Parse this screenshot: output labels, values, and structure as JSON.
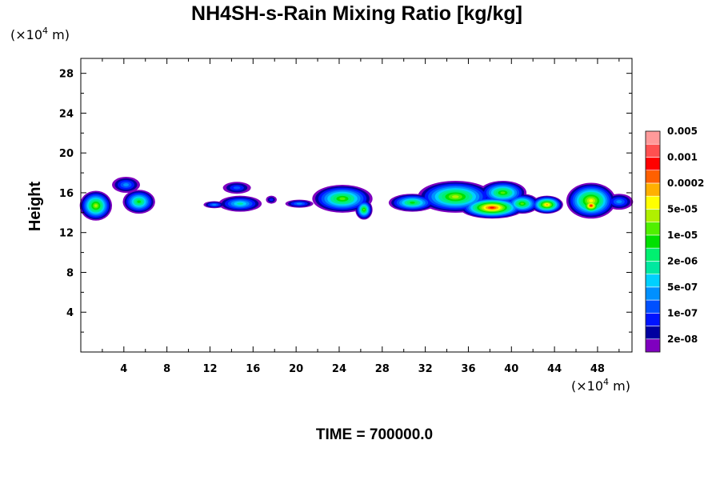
{
  "chart_data": {
    "type": "heatmap",
    "title": "NH4SH-s-Rain Mixing Ratio [kg/kg]",
    "ylabel": "Height",
    "xlabel": "",
    "x_unit": {
      "prefix": "(×10",
      "exp": "4",
      "suffix": " m)"
    },
    "y_unit": {
      "prefix": "(×10",
      "exp": "4",
      "suffix": " m)"
    },
    "xlim": [
      0,
      51.2
    ],
    "ylim": [
      0,
      29.5
    ],
    "x_ticks": [
      4,
      8,
      12,
      16,
      20,
      24,
      28,
      32,
      36,
      40,
      44,
      48
    ],
    "y_ticks": [
      4,
      8,
      12,
      16,
      20,
      24,
      28
    ],
    "time_label": "TIME = 700000.0",
    "colorbar": {
      "colors": [
        "#7f00bf",
        "#0000a0",
        "#0014ff",
        "#0050ff",
        "#0090ff",
        "#00d0ff",
        "#00e8a0",
        "#00f070",
        "#00e000",
        "#50f000",
        "#b0f000",
        "#ffff00",
        "#ffb000",
        "#ff6000",
        "#ff0000",
        "#ff5050",
        "#ff9a9a"
      ],
      "labels": [
        "2e-08",
        "1e-07",
        "5e-07",
        "2e-06",
        "1e-05",
        "5e-05",
        "0.0002",
        "0.001",
        "0.005"
      ]
    },
    "field_blobs": [
      {
        "x": 1.4,
        "y": 14.7,
        "rx": 1.5,
        "ry": 1.5,
        "peak": 10
      },
      {
        "x": 4.2,
        "y": 16.8,
        "rx": 1.3,
        "ry": 0.8,
        "peak": 4
      },
      {
        "x": 5.4,
        "y": 15.1,
        "rx": 1.5,
        "ry": 1.2,
        "peak": 8
      },
      {
        "x": 12.4,
        "y": 14.8,
        "rx": 1.0,
        "ry": 0.35,
        "peak": 4
      },
      {
        "x": 14.8,
        "y": 14.9,
        "rx": 2.0,
        "ry": 0.8,
        "peak": 6
      },
      {
        "x": 14.5,
        "y": 16.5,
        "rx": 1.3,
        "ry": 0.6,
        "peak": 3
      },
      {
        "x": 17.7,
        "y": 15.3,
        "rx": 0.5,
        "ry": 0.4,
        "peak": 2
      },
      {
        "x": 20.3,
        "y": 14.9,
        "rx": 1.3,
        "ry": 0.4,
        "peak": 4
      },
      {
        "x": 24.3,
        "y": 15.4,
        "rx": 2.8,
        "ry": 1.4,
        "peak": 9
      },
      {
        "x": 26.3,
        "y": 14.3,
        "rx": 0.8,
        "ry": 1.0,
        "peak": 9
      },
      {
        "x": 30.8,
        "y": 15.0,
        "rx": 2.2,
        "ry": 0.9,
        "peak": 8
      },
      {
        "x": 34.8,
        "y": 15.6,
        "rx": 3.5,
        "ry": 1.6,
        "peak": 10
      },
      {
        "x": 38.2,
        "y": 14.5,
        "rx": 3.0,
        "ry": 1.1,
        "peak": 14
      },
      {
        "x": 39.2,
        "y": 16.0,
        "rx": 2.2,
        "ry": 1.2,
        "peak": 9
      },
      {
        "x": 41.0,
        "y": 14.9,
        "rx": 1.6,
        "ry": 1.0,
        "peak": 9
      },
      {
        "x": 43.3,
        "y": 14.8,
        "rx": 1.5,
        "ry": 0.9,
        "peak": 12
      },
      {
        "x": 47.4,
        "y": 15.2,
        "rx": 2.3,
        "ry": 1.8,
        "peak": 11
      },
      {
        "x": 47.4,
        "y": 14.7,
        "rx": 1.1,
        "ry": 0.9,
        "peak": 14
      },
      {
        "x": 50.0,
        "y": 15.1,
        "rx": 1.3,
        "ry": 0.8,
        "peak": 4
      }
    ]
  }
}
